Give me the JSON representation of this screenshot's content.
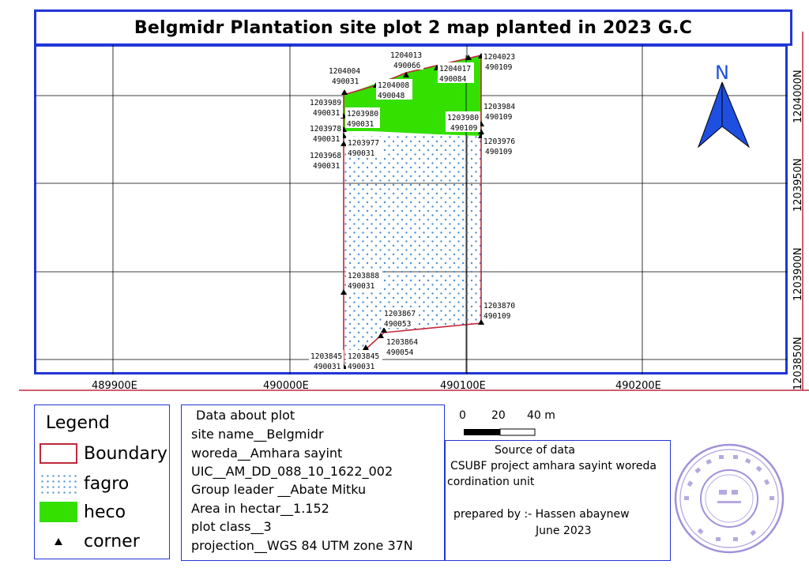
{
  "title": "Belgmidr Plantation site plot 2 map planted in 2023 G.C",
  "map": {
    "x_ticks": [
      "489900E",
      "490000E",
      "490100E",
      "490200E"
    ],
    "y_ticks": [
      "1204000N",
      "1203950N",
      "1203900N",
      "1203850N"
    ],
    "north_label": "N",
    "points": [
      {
        "e": "1204013",
        "n": "490066"
      },
      {
        "e": "1204023",
        "n": "490109"
      },
      {
        "e": "1204004",
        "n": "490031"
      },
      {
        "e": "1204017",
        "n": "490084"
      },
      {
        "e": "1204008",
        "n": "490048"
      },
      {
        "e": "1203989",
        "n": "490031"
      },
      {
        "e": "1203980",
        "n": "490031"
      },
      {
        "e": "1203984",
        "n": "490109"
      },
      {
        "e": "1203980",
        "n": "490109"
      },
      {
        "e": "1203978",
        "n": "490031"
      },
      {
        "e": "1203977",
        "n": "490031"
      },
      {
        "e": "1203976",
        "n": "490109"
      },
      {
        "e": "1203968",
        "n": "490031"
      },
      {
        "e": "1203888",
        "n": "490031"
      },
      {
        "e": "1203870",
        "n": "490109"
      },
      {
        "e": "1203867",
        "n": "490053"
      },
      {
        "e": "1203864",
        "n": "490054"
      },
      {
        "e": "1203845",
        "n": "490031"
      },
      {
        "e": "1203845",
        "n": "490031"
      }
    ]
  },
  "legend": {
    "title": "Legend",
    "items": [
      {
        "label": "Boundary",
        "color": "#c0283a"
      },
      {
        "label": "fagro",
        "color": "#4a8fd0"
      },
      {
        "label": "heco",
        "color": "#33e000"
      },
      {
        "label": "corner",
        "color": "#000000"
      }
    ]
  },
  "info": {
    "heading": "Data about plot",
    "site_name": "site name__Belgmidr",
    "woreda": "woreda__Amhara sayint",
    "uic": "UIC__AM_DD_088_10_1622_002",
    "group_leader": "Group leader __Abate Mitku",
    "area": "Area in hectar__1.152",
    "plot_class": "plot class__3",
    "projection": "projection__WGS 84 UTM zone 37N"
  },
  "scale": {
    "labels": [
      "0",
      "20",
      "40 m"
    ]
  },
  "source": {
    "heading": "Source of data",
    "line1": "CSUBF project amhara sayint woreda",
    "line2": "cordination unit",
    "prepared": "prepared by :- Hassen abaynew",
    "date": "June 2023"
  },
  "colors": {
    "frame": "#2136d6",
    "boundary": "#c0283a",
    "heco": "#33e000",
    "fagro_dot": "#4a8fd0",
    "north_arrow": "#1f4fe0",
    "stamp": "#7b63c8"
  }
}
